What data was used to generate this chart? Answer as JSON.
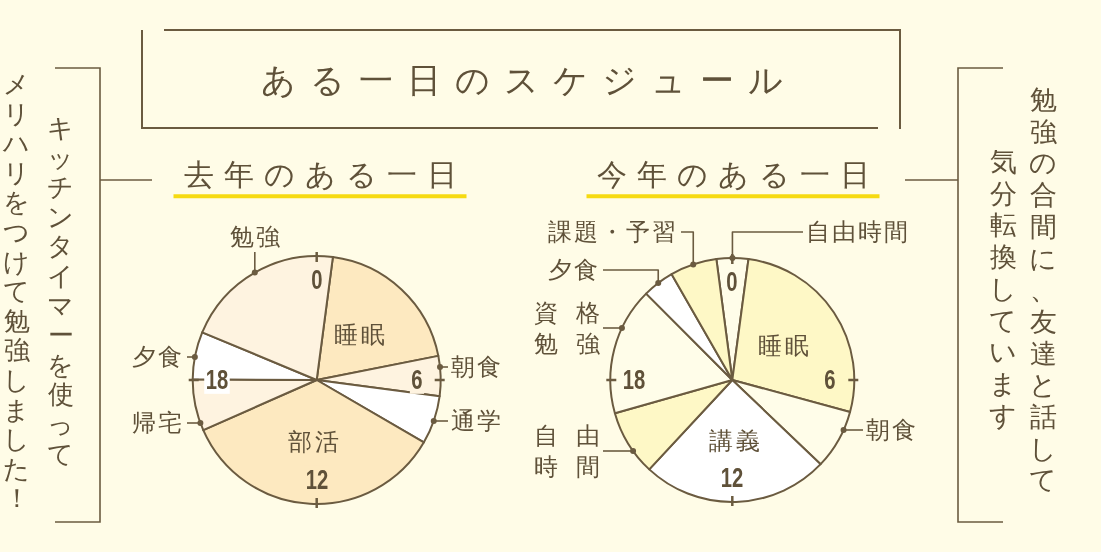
{
  "chart_data": [
    {
      "type": "other",
      "title": "ある一日のスケジュール"
    },
    {
      "type": "pie",
      "title": "去年のある一日",
      "subtitle": "キッチンタイマーを使ってメリハリをつけて勉強しました！",
      "categories": [
        "睡眠",
        "朝食",
        "通学",
        "部活",
        "帰宅",
        "夕食",
        "勉強"
      ],
      "values": [
        19.8,
        5.2,
        6.3,
        35.0,
        6.7,
        6.2,
        20.8
      ],
      "colors": [
        "#fde9c0",
        "#fef3e0",
        "#ffffff",
        "#fde9c0",
        "#fef3e0",
        "#ffffff",
        "#fef3e0"
      ],
      "annotations": [
        "0",
        "6",
        "12",
        "18"
      ]
    },
    {
      "type": "pie",
      "title": "今年のある一日",
      "subtitle": "勉強の合間に、友達と話して気分転換しています",
      "categories": [
        "自由時間",
        "睡眠",
        "朝食",
        "講義",
        "自由時間",
        "資格勉強",
        "夕食",
        "課題・予習"
      ],
      "values": [
        4.2,
        27.1,
        7.9,
        24.8,
        8.7,
        16.9,
        4.2,
        6.2
      ],
      "colors": [
        "#fffde9",
        "#fef8c6",
        "#fffde9",
        "#ffffff",
        "#fef8c6",
        "#fffde9",
        "#ffffff",
        "#fef8c6"
      ],
      "annotations": [
        "0",
        "6",
        "12",
        "18"
      ]
    }
  ]
}
